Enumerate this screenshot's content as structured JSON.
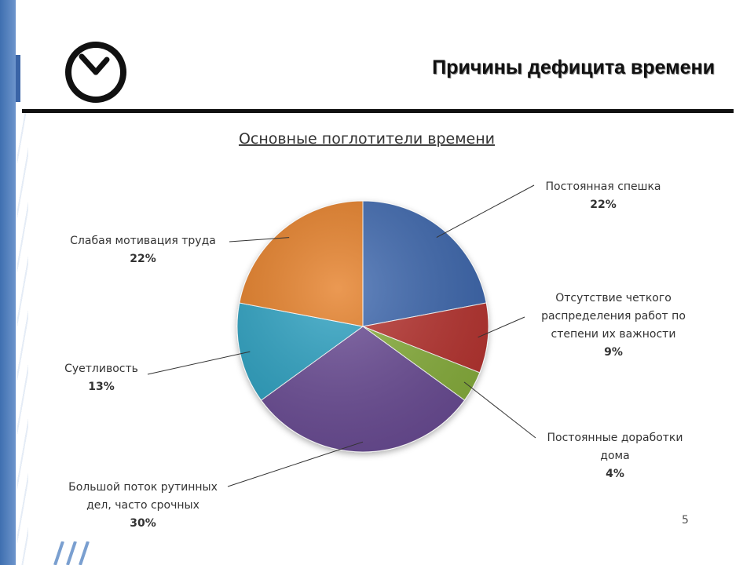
{
  "header": {
    "title": "Причины дефицита времени",
    "icon": "clock-icon"
  },
  "slide_number": "5",
  "chart_data": {
    "type": "pie",
    "title": "Основные поглотители времени",
    "start_angle_deg": 0,
    "direction": "clockwise",
    "slices": [
      {
        "label_lines": [
          "Постоянная спешка"
        ],
        "value": 22,
        "value_label": "22%",
        "color": "#3a66ae"
      },
      {
        "label_lines": [
          "Отсутствие четкого",
          "распределения работ по",
          "степени их важности"
        ],
        "value": 9,
        "value_label": "9%",
        "color": "#b8302e"
      },
      {
        "label_lines": [
          "Постоянные доработки",
          "дома"
        ],
        "value": 4,
        "value_label": "4%",
        "color": "#88b03a"
      },
      {
        "label_lines": [
          "Большой поток рутинных",
          "дел, часто срочных"
        ],
        "value": 30,
        "value_label": "30%",
        "color": "#6a4b95"
      },
      {
        "label_lines": [
          "Суетливость"
        ],
        "value": 13,
        "value_label": "13%",
        "color": "#2aa1c2"
      },
      {
        "label_lines": [
          "Слабая мотивация труда"
        ],
        "value": 22,
        "value_label": "22%",
        "color": "#e57b23"
      }
    ]
  }
}
